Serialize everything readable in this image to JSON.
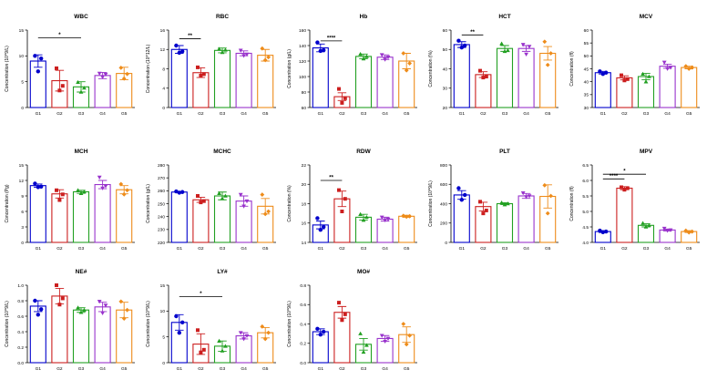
{
  "colors": {
    "G1": "#0000cc",
    "G2": "#cc1f1f",
    "G3": "#22a022",
    "G4": "#9933cc",
    "G5": "#ee8c1a",
    "axis": "#000000"
  },
  "chart_data": [
    {
      "type": "bar",
      "title": "WBC",
      "ylabel": "Concentration (10^9/L)",
      "categories": [
        "G1",
        "G2",
        "G3",
        "G4",
        "G5"
      ],
      "ylim": [
        0,
        15
      ],
      "yticks": [
        0,
        5,
        10,
        15
      ],
      "values": [
        9.0,
        5.2,
        4.0,
        6.2,
        6.6
      ],
      "errors": [
        1.2,
        2.0,
        1.0,
        0.6,
        1.2
      ],
      "points": [
        [
          10.0,
          9.5,
          7.0
        ],
        [
          7.6,
          4.2,
          3.3
        ],
        [
          4.9,
          3.8,
          3.0
        ],
        [
          6.6,
          6.4,
          5.9
        ],
        [
          7.7,
          6.5,
          5.6
        ]
      ],
      "sig": [
        {
          "from": 0,
          "to": 2,
          "label": "*",
          "y": 13.5
        }
      ]
    },
    {
      "type": "bar",
      "title": "RBC",
      "ylabel": "Concentration (10^12/L)",
      "categories": [
        "G1",
        "G2",
        "G3",
        "G4",
        "G5"
      ],
      "ylim": [
        0,
        16
      ],
      "yticks": [
        0,
        4,
        8,
        12,
        16
      ],
      "values": [
        12.0,
        7.2,
        11.8,
        11.2,
        10.8
      ],
      "errors": [
        0.8,
        1.0,
        0.5,
        0.5,
        1.2
      ],
      "points": [
        [
          12.8,
          11.6,
          11.3
        ],
        [
          8.3,
          6.9,
          6.6
        ],
        [
          12.1,
          11.9,
          11.4
        ],
        [
          11.8,
          11.0,
          10.7
        ],
        [
          12.2,
          10.4,
          9.8
        ]
      ],
      "sig": [
        {
          "from": 0,
          "to": 1,
          "label": "**",
          "y": 14.2
        }
      ]
    },
    {
      "type": "bar",
      "title": "Hb",
      "ylabel": "Concentration (g/L)",
      "categories": [
        "G1",
        "G2",
        "G3",
        "G4",
        "G5"
      ],
      "ylim": [
        60,
        160
      ],
      "yticks": [
        60,
        80,
        100,
        120,
        140,
        160
      ],
      "values": [
        137,
        74,
        126,
        125,
        120
      ],
      "errors": [
        5,
        5,
        3,
        3,
        10
      ],
      "points": [
        [
          144,
          134,
          133
        ],
        [
          84,
          72,
          66
        ],
        [
          129,
          126,
          123
        ],
        [
          128,
          125,
          122
        ],
        [
          130,
          117,
          108
        ]
      ],
      "sig": [
        {
          "from": 0,
          "to": 1,
          "label": "****",
          "y": 146
        }
      ]
    },
    {
      "type": "bar",
      "title": "HCT",
      "ylabel": "Concentration (%)",
      "categories": [
        "G1",
        "G2",
        "G3",
        "G4",
        "G5"
      ],
      "ylim": [
        20,
        60
      ],
      "yticks": [
        20,
        30,
        40,
        50,
        60
      ],
      "values": [
        52.5,
        37.0,
        50.5,
        50.5,
        48.0
      ],
      "errors": [
        1.5,
        1.5,
        1.5,
        1.5,
        3.5
      ],
      "points": [
        [
          54.5,
          52.0,
          51.0
        ],
        [
          39.0,
          36.0,
          35.5
        ],
        [
          53.0,
          49.5,
          49.0
        ],
        [
          52.5,
          51.5,
          47.5
        ],
        [
          54.0,
          48.0,
          42.0
        ]
      ],
      "sig": [
        {
          "from": 0,
          "to": 1,
          "label": "**",
          "y": 57.5
        }
      ]
    },
    {
      "type": "bar",
      "title": "MCV",
      "ylabel": "Concentration (fl)",
      "categories": [
        "G1",
        "G2",
        "G3",
        "G4",
        "G5"
      ],
      "ylim": [
        30,
        60
      ],
      "yticks": [
        30,
        35,
        40,
        45,
        50,
        55,
        60
      ],
      "values": [
        43.5,
        41.5,
        42.0,
        46.0,
        45.5
      ],
      "errors": [
        0.5,
        0.8,
        1.2,
        0.8,
        0.5
      ],
      "points": [
        [
          44.0,
          43.5,
          43.0
        ],
        [
          42.5,
          41.0,
          40.5
        ],
        [
          43.0,
          42.0,
          40.0
        ],
        [
          47.5,
          45.5,
          45.0
        ],
        [
          46.0,
          45.5,
          45.0
        ]
      ],
      "sig": []
    },
    {
      "type": "bar",
      "title": "MCH",
      "ylabel": "Concentration (Pg)",
      "categories": [
        "G1",
        "G2",
        "G3",
        "G4",
        "G5"
      ],
      "ylim": [
        0,
        15
      ],
      "yticks": [
        0,
        3,
        6,
        9,
        12,
        15
      ],
      "values": [
        11.0,
        9.4,
        9.8,
        11.2,
        10.2
      ],
      "errors": [
        0.3,
        0.8,
        0.3,
        0.8,
        0.8
      ],
      "points": [
        [
          11.4,
          10.8,
          10.7
        ],
        [
          10.1,
          9.3,
          8.2
        ],
        [
          10.1,
          9.8,
          9.5
        ],
        [
          12.6,
          10.9,
          10.5
        ],
        [
          11.3,
          10.1,
          9.3
        ]
      ],
      "sig": []
    },
    {
      "type": "bar",
      "title": "MCHC",
      "ylabel": "Concentration (g/L)",
      "categories": [
        "G1",
        "G2",
        "G3",
        "G4",
        "G5"
      ],
      "ylim": [
        220,
        280
      ],
      "yticks": [
        220,
        230,
        240,
        250,
        260,
        270,
        280
      ],
      "values": [
        259,
        253,
        256,
        252,
        248
      ],
      "errors": [
        0.5,
        2,
        3,
        4,
        6
      ],
      "points": [
        [
          259.5,
          259,
          258.5
        ],
        [
          256,
          252,
          251
        ],
        [
          258,
          256,
          254
        ],
        [
          257,
          252,
          248
        ],
        [
          257,
          244,
          242
        ]
      ],
      "sig": []
    },
    {
      "type": "bar",
      "title": "RDW",
      "ylabel": "Concentration (%)",
      "categories": [
        "G1",
        "G2",
        "G3",
        "G4",
        "G5"
      ],
      "ylim": [
        14,
        22
      ],
      "yticks": [
        14,
        16,
        18,
        20,
        22
      ],
      "values": [
        15.8,
        18.5,
        16.6,
        16.4,
        16.7
      ],
      "errors": [
        0.4,
        0.8,
        0.3,
        0.2,
        0.1
      ],
      "points": [
        [
          16.5,
          15.6,
          15.3
        ],
        [
          19.4,
          18.5,
          17.2
        ],
        [
          16.9,
          16.6,
          16.3
        ],
        [
          16.6,
          16.4,
          16.3
        ],
        [
          16.75,
          16.7,
          16.65
        ]
      ],
      "sig": [
        {
          "from": 0,
          "to": 1,
          "label": "**",
          "y": 20.4
        }
      ]
    },
    {
      "type": "bar",
      "title": "PLT",
      "ylabel": "Concentration (10^9/L)",
      "categories": [
        "G1",
        "G2",
        "G3",
        "G4",
        "G5"
      ],
      "ylim": [
        0,
        800
      ],
      "yticks": [
        0,
        200,
        400,
        600,
        800
      ],
      "values": [
        490,
        370,
        400,
        480,
        475
      ],
      "errors": [
        45,
        45,
        10,
        25,
        120
      ],
      "points": [
        [
          560,
          490,
          440
        ],
        [
          420,
          330,
          300
        ],
        [
          410,
          400,
          390
        ],
        [
          510,
          480,
          470
        ],
        [
          590,
          480,
          300
        ]
      ],
      "sig": []
    },
    {
      "type": "bar",
      "title": "MPV",
      "ylabel": "Concentration (fl)",
      "categories": [
        "G1",
        "G2",
        "G3",
        "G4",
        "G5"
      ],
      "ylim": [
        4.0,
        6.5
      ],
      "yticks": [
        4.0,
        4.5,
        5.0,
        5.5,
        6.0,
        6.5
      ],
      "values": [
        4.35,
        5.75,
        4.55,
        4.4,
        4.35
      ],
      "errors": [
        0.03,
        0.05,
        0.05,
        0.03,
        0.03
      ],
      "points": [
        [
          4.38,
          4.35,
          4.33
        ],
        [
          5.78,
          5.75,
          5.7
        ],
        [
          4.62,
          4.55,
          4.5
        ],
        [
          4.45,
          4.4,
          4.38
        ],
        [
          4.38,
          4.35,
          4.32
        ]
      ],
      "sig": [
        {
          "from": 0,
          "to": 1,
          "label": "****",
          "y": 6.05
        },
        {
          "from": 0,
          "to": 2,
          "label": "*",
          "y": 6.2
        }
      ]
    },
    {
      "type": "bar",
      "title": "NE#",
      "ylabel": "Concentration (10^9/L)",
      "categories": [
        "G1",
        "G2",
        "G3",
        "G4",
        "G5"
      ],
      "ylim": [
        0,
        1.0
      ],
      "yticks": [
        0.0,
        0.2,
        0.4,
        0.6,
        0.8,
        1.0
      ],
      "values": [
        0.73,
        0.86,
        0.68,
        0.72,
        0.68
      ],
      "errors": [
        0.07,
        0.1,
        0.03,
        0.06,
        0.1
      ],
      "points": [
        [
          0.8,
          0.69,
          0.62
        ],
        [
          1.0,
          0.83,
          0.75
        ],
        [
          0.71,
          0.68,
          0.65
        ],
        [
          0.79,
          0.74,
          0.64
        ],
        [
          0.79,
          0.68,
          0.57
        ]
      ],
      "sig": []
    },
    {
      "type": "bar",
      "title": "LY#",
      "ylabel": "Concentration (10^9/L)",
      "categories": [
        "G1",
        "G2",
        "G3",
        "G4",
        "G5"
      ],
      "ylim": [
        0,
        15
      ],
      "yticks": [
        0,
        5,
        10,
        15
      ],
      "values": [
        7.8,
        3.6,
        3.2,
        5.2,
        5.8
      ],
      "errors": [
        1.5,
        2.0,
        1.0,
        0.6,
        1.0
      ],
      "points": [
        [
          9.0,
          7.8,
          5.8
        ],
        [
          6.3,
          2.5,
          2.0
        ],
        [
          4.2,
          3.2,
          2.3
        ],
        [
          5.8,
          5.2,
          4.6
        ],
        [
          7.0,
          5.8,
          4.6
        ]
      ],
      "sig": [
        {
          "from": 0,
          "to": 2,
          "label": "*",
          "y": 12.8
        }
      ]
    },
    {
      "type": "bar",
      "title": "MO#",
      "ylabel": "Concentration (10^9/L)",
      "categories": [
        "G1",
        "G2",
        "G3",
        "G4",
        "G5"
      ],
      "ylim": [
        0,
        0.8
      ],
      "yticks": [
        0.0,
        0.2,
        0.4,
        0.6,
        0.8
      ],
      "values": [
        0.32,
        0.52,
        0.19,
        0.25,
        0.29
      ],
      "errors": [
        0.03,
        0.06,
        0.06,
        0.03,
        0.08
      ],
      "points": [
        [
          0.35,
          0.32,
          0.29
        ],
        [
          0.62,
          0.5,
          0.44
        ],
        [
          0.3,
          0.18,
          0.11
        ],
        [
          0.28,
          0.25,
          0.22
        ],
        [
          0.4,
          0.28,
          0.19
        ]
      ],
      "sig": []
    }
  ]
}
